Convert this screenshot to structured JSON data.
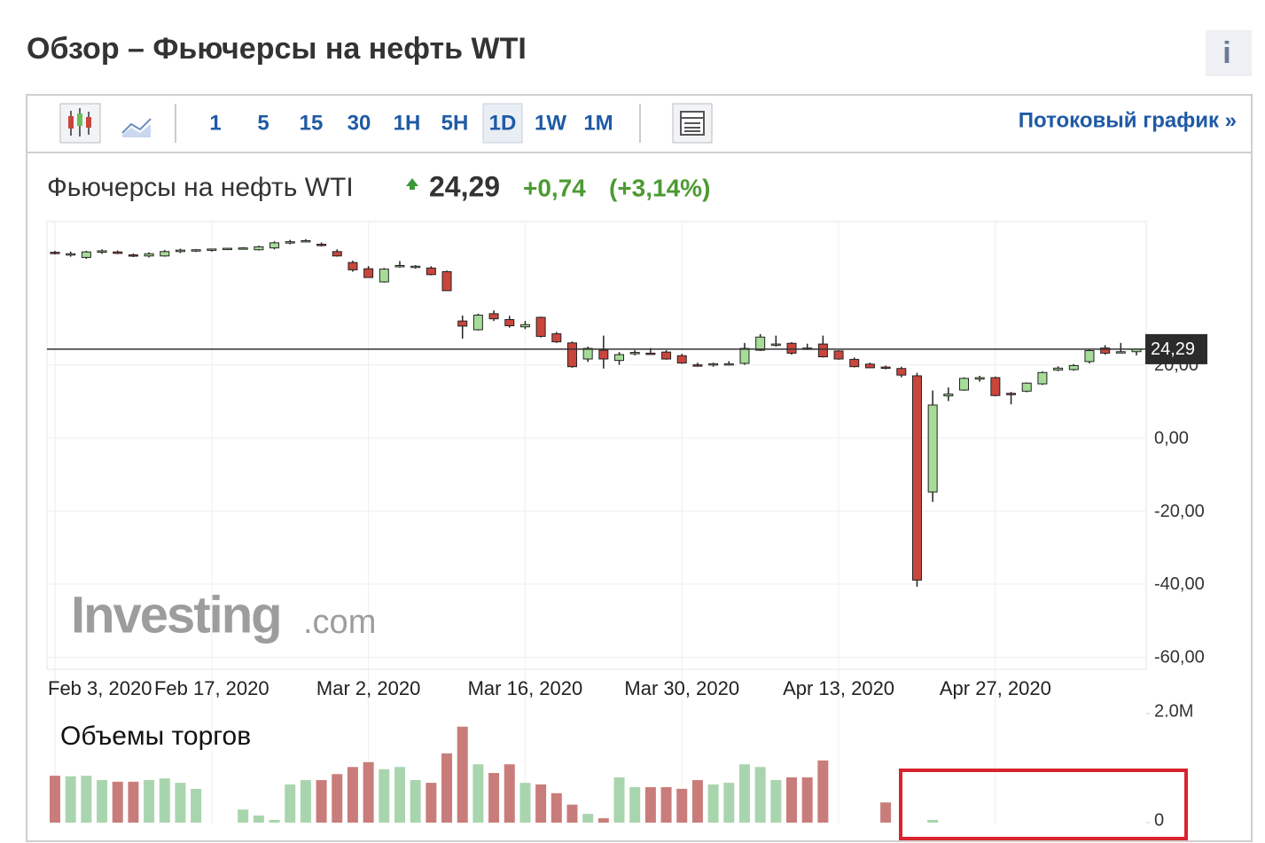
{
  "header": {
    "title": "Обзор – Фьючерсы на нефть WTI",
    "info_icon": "i"
  },
  "toolbar": {
    "intervals": [
      "1",
      "5",
      "15",
      "30",
      "1H",
      "5H",
      "1D",
      "1W",
      "1M"
    ],
    "active": "1D",
    "streaming_link": "Потоковый график »"
  },
  "quote": {
    "name": "Фьючерсы на нефть WTI",
    "price": "24,29",
    "change": "+0,74",
    "change_percent": "(+3,14%)"
  },
  "watermark": {
    "brand": "Investing",
    "suffix": ".com"
  },
  "chart_data": [
    {
      "type": "candlestick",
      "up_color": "#a6dc98",
      "down_color": "#c9463d",
      "categories": [
        "Feb 3, 2020",
        null,
        null,
        null,
        null,
        null,
        null,
        null,
        null,
        null,
        "Feb 17, 2020",
        null,
        null,
        null,
        null,
        null,
        null,
        null,
        null,
        null,
        "Mar 2, 2020",
        null,
        null,
        null,
        null,
        null,
        null,
        null,
        null,
        null,
        "Mar 16, 2020",
        null,
        null,
        null,
        null,
        null,
        null,
        null,
        null,
        null,
        "Mar 30, 2020",
        null,
        null,
        null,
        null,
        null,
        null,
        null,
        null,
        null,
        "Apr 13, 2020",
        null,
        null,
        null,
        null,
        null,
        null,
        null,
        null,
        null,
        "Apr 27, 2020",
        null,
        null,
        null,
        null,
        null,
        null,
        null,
        null,
        null
      ],
      "ohlc": [
        [
          50.8,
          51.2,
          50.2,
          50.6
        ],
        [
          50.2,
          51,
          49.6,
          50.4
        ],
        [
          49.4,
          51.2,
          49,
          50.9
        ],
        [
          50.8,
          51.6,
          50.4,
          51.2
        ],
        [
          50.9,
          51.3,
          50.3,
          50.5
        ],
        [
          50.1,
          50.5,
          49.5,
          49.8
        ],
        [
          49.8,
          50.8,
          49.4,
          50.4
        ],
        [
          49.8,
          51.4,
          49.6,
          51
        ],
        [
          51,
          51.8,
          50.6,
          51.4
        ],
        [
          51.3,
          51.7,
          50.9,
          51.5
        ],
        [
          51.4,
          51.8,
          51,
          51.7
        ],
        [
          51.8,
          52,
          51.6,
          51.9
        ],
        [
          51.9,
          52.2,
          51.7,
          52
        ],
        [
          51.5,
          52.6,
          51.3,
          52.3
        ],
        [
          52,
          53.8,
          51.6,
          53.4
        ],
        [
          53.5,
          54.2,
          53,
          53.7
        ],
        [
          53.9,
          54.4,
          53.5,
          54
        ],
        [
          53,
          53.5,
          52.4,
          52.8
        ],
        [
          51,
          51.6,
          49.6,
          49.8
        ],
        [
          48,
          48.5,
          45.5,
          46
        ],
        [
          46.3,
          47,
          43.8,
          43.9
        ],
        [
          42.7,
          46.5,
          42.5,
          46.2
        ],
        [
          47,
          48.4,
          46.6,
          47.2
        ],
        [
          46.8,
          47.3,
          46.3,
          47
        ],
        [
          46.5,
          47,
          44.5,
          44.7
        ],
        [
          45.5,
          45.8,
          40.2,
          40.3
        ],
        [
          32,
          33.5,
          27.2,
          30.6
        ],
        [
          29.6,
          34,
          29.4,
          33.6
        ],
        [
          34,
          34.9,
          32,
          32.6
        ],
        [
          32.4,
          33.4,
          30.2,
          30.7
        ],
        [
          30.4,
          32,
          29.8,
          31
        ],
        [
          33,
          33.2,
          27.5,
          27.8
        ],
        [
          28.5,
          29,
          26,
          26.3
        ],
        [
          26,
          26.4,
          19.2,
          19.5
        ],
        [
          21.6,
          25,
          20.8,
          24.5
        ],
        [
          24,
          28,
          19,
          21.6
        ],
        [
          21.2,
          23.5,
          20,
          22.8
        ],
        [
          23.1,
          24,
          22.6,
          23.4
        ],
        [
          23.2,
          24.6,
          22.8,
          23
        ],
        [
          23.5,
          24,
          21.4,
          21.6
        ],
        [
          22.5,
          23,
          20.3,
          20.5
        ],
        [
          20,
          20.6,
          19.5,
          19.9
        ],
        [
          20.1,
          20.6,
          19.5,
          20.3
        ],
        [
          20.1,
          21,
          19.8,
          20.3
        ],
        [
          20.4,
          26,
          20,
          24.5
        ],
        [
          24,
          28.4,
          23.8,
          27.6
        ],
        [
          25.5,
          28,
          25,
          25.7
        ],
        [
          25.9,
          26.2,
          22.8,
          23.2
        ],
        [
          24.6,
          25.8,
          24.1,
          24.3
        ],
        [
          25.7,
          28,
          22,
          22.2
        ],
        [
          23.8,
          24,
          21.4,
          21.6
        ],
        [
          21.5,
          22,
          19.3,
          19.5
        ],
        [
          20.2,
          20.6,
          19.1,
          19.2
        ],
        [
          19.4,
          19.8,
          18.8,
          19.1
        ],
        [
          19,
          19.5,
          16.6,
          17.2
        ],
        [
          17,
          17.8,
          -40.7,
          -38.9
        ],
        [
          -14.8,
          13,
          -17.5,
          9
        ],
        [
          11.5,
          13.8,
          10.1,
          12
        ],
        [
          13.1,
          16.6,
          12.9,
          16.3
        ],
        [
          16.1,
          17,
          15.4,
          16.5
        ],
        [
          16.5,
          16.8,
          11.4,
          11.6
        ],
        [
          12.2,
          12.6,
          9.2,
          12
        ],
        [
          12.8,
          15.2,
          12.5,
          15
        ],
        [
          14.8,
          18.2,
          14.5,
          17.9
        ],
        [
          18.6,
          19.6,
          18.3,
          19.1
        ],
        [
          18.7,
          20.2,
          18.4,
          19.8
        ],
        [
          20.9,
          24.2,
          20.4,
          23.9
        ],
        [
          24.6,
          25.4,
          22.8,
          23.2
        ],
        [
          23.5,
          26,
          23.3,
          23.6
        ],
        [
          23.6,
          24.4,
          22.6,
          24.29
        ]
      ],
      "ylim": [
        -63.3,
        59.2
      ],
      "yticks": [
        {
          "value": 20,
          "label": "20,00"
        },
        {
          "value": 0,
          "label": "0,00"
        },
        {
          "value": -20,
          "label": "-20,00"
        },
        {
          "value": -40,
          "label": "-40,00"
        },
        {
          "value": -60,
          "label": "-60,00"
        }
      ],
      "grid": true,
      "last": {
        "value": 24.29,
        "label": "24,29"
      }
    },
    {
      "type": "bar",
      "title": "Объемы торгов",
      "up_color": "#a9d5ae",
      "down_color": "#c97d7b",
      "values": [
        860000,
        850000,
        860000,
        780000,
        750000,
        750000,
        780000,
        810000,
        730000,
        620000,
        null,
        null,
        240000,
        130000,
        50000,
        700000,
        780000,
        780000,
        890000,
        1020000,
        1110000,
        980000,
        1020000,
        780000,
        730000,
        1270000,
        1760000,
        1070000,
        910000,
        1070000,
        730000,
        700000,
        540000,
        330000,
        160000,
        80000,
        830000,
        650000,
        650000,
        650000,
        620000,
        780000,
        700000,
        730000,
        1070000,
        1020000,
        780000,
        830000,
        830000,
        1140000,
        null,
        null,
        null,
        370000,
        null,
        null,
        50000,
        null,
        null,
        null,
        null,
        null,
        null,
        null,
        null,
        null,
        null,
        null,
        null,
        null
      ],
      "ylim": [
        0,
        2000000
      ],
      "yticks": [
        {
          "value": 2000000,
          "label": "2.0M"
        },
        0
      ]
    }
  ]
}
